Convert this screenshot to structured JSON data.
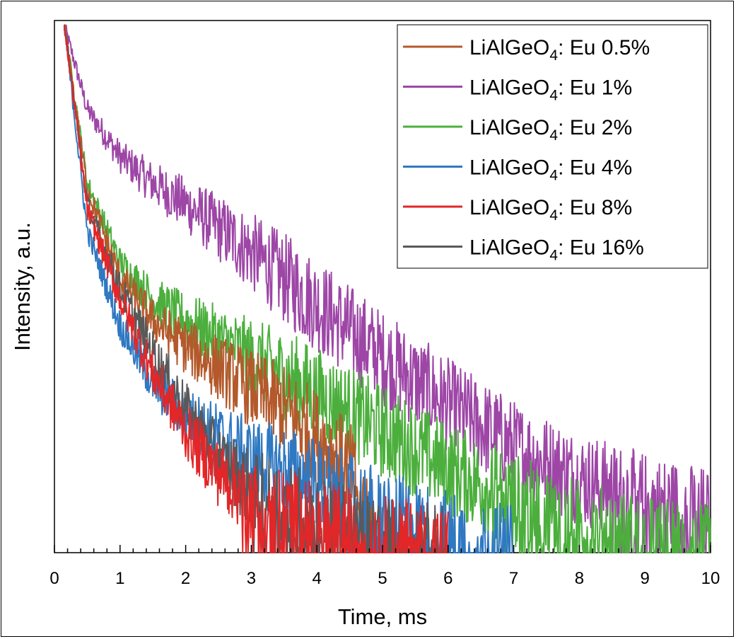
{
  "chart_data": {
    "type": "line",
    "title": "",
    "xlabel": "Time, ms",
    "ylabel": "Intensity, a.u.",
    "xlim": [
      0,
      10
    ],
    "ylim": [
      0,
      1
    ],
    "y_scale": "log",
    "x_ticks": [
      "0",
      "1",
      "2",
      "3",
      "4",
      "5",
      "6",
      "7",
      "8",
      "9",
      "10"
    ],
    "grid": false,
    "legend_position": "top-right",
    "series": [
      {
        "name": "Eu 0.5%",
        "color": "#b4592b",
        "x": [
          0.15,
          0.5,
          1,
          1.5,
          2,
          2.5,
          3,
          3.5,
          4,
          4.5,
          5
        ],
        "y": [
          1.0,
          0.69,
          0.52,
          0.44,
          0.39,
          0.35,
          0.31,
          0.27,
          0.22,
          0.16,
          0.0
        ]
      },
      {
        "name": "Eu 1%",
        "color": "#9d46a6",
        "x": [
          0.15,
          0.5,
          1,
          1.5,
          2,
          3,
          4,
          5,
          6,
          7,
          8,
          9,
          10
        ],
        "y": [
          1.0,
          0.84,
          0.75,
          0.7,
          0.66,
          0.57,
          0.47,
          0.37,
          0.28,
          0.2,
          0.14,
          0.1,
          0.07
        ]
      },
      {
        "name": "Eu 2%",
        "color": "#4caf3d",
        "x": [
          0.15,
          0.5,
          1,
          1.5,
          2,
          3,
          4,
          5,
          6,
          7,
          8,
          9,
          10
        ],
        "y": [
          1.0,
          0.7,
          0.55,
          0.48,
          0.44,
          0.37,
          0.3,
          0.23,
          0.16,
          0.1,
          0.05,
          0.02,
          0.0
        ]
      },
      {
        "name": "Eu 4%",
        "color": "#2f78c2",
        "x": [
          0.15,
          0.5,
          1,
          1.5,
          2,
          2.5,
          3,
          4,
          5,
          6,
          7
        ],
        "y": [
          1.0,
          0.61,
          0.43,
          0.32,
          0.26,
          0.22,
          0.18,
          0.13,
          0.07,
          0.03,
          0.0
        ]
      },
      {
        "name": "Eu 8%",
        "color": "#e32628",
        "x": [
          0.15,
          0.5,
          1,
          1.5,
          2,
          2.5,
          3,
          4,
          5,
          6
        ],
        "y": [
          1.0,
          0.65,
          0.48,
          0.34,
          0.23,
          0.15,
          0.1,
          0.05,
          0.02,
          0.0
        ]
      },
      {
        "name": "Eu 16%",
        "color": "#595959",
        "x": [
          0.15,
          0.5,
          1,
          1.5,
          2,
          2.5,
          3,
          4,
          5,
          6
        ],
        "y": [
          1.0,
          0.66,
          0.5,
          0.38,
          0.27,
          0.18,
          0.12,
          0.06,
          0.02,
          0.0
        ]
      }
    ]
  },
  "legend": [
    {
      "base": "LiAlGeO",
      "sub": "4",
      "suffix": ": Eu 0.5%"
    },
    {
      "base": "LiAlGeO",
      "sub": "4",
      "suffix": ": Eu 1%"
    },
    {
      "base": "LiAlGeO",
      "sub": "4",
      "suffix": ": Eu 2%"
    },
    {
      "base": "LiAlGeO",
      "sub": "4",
      "suffix": ": Eu 4%"
    },
    {
      "base": "LiAlGeO",
      "sub": "4",
      "suffix": ": Eu 8%"
    },
    {
      "base": "LiAlGeO",
      "sub": "4",
      "suffix": ": Eu 16%"
    }
  ]
}
